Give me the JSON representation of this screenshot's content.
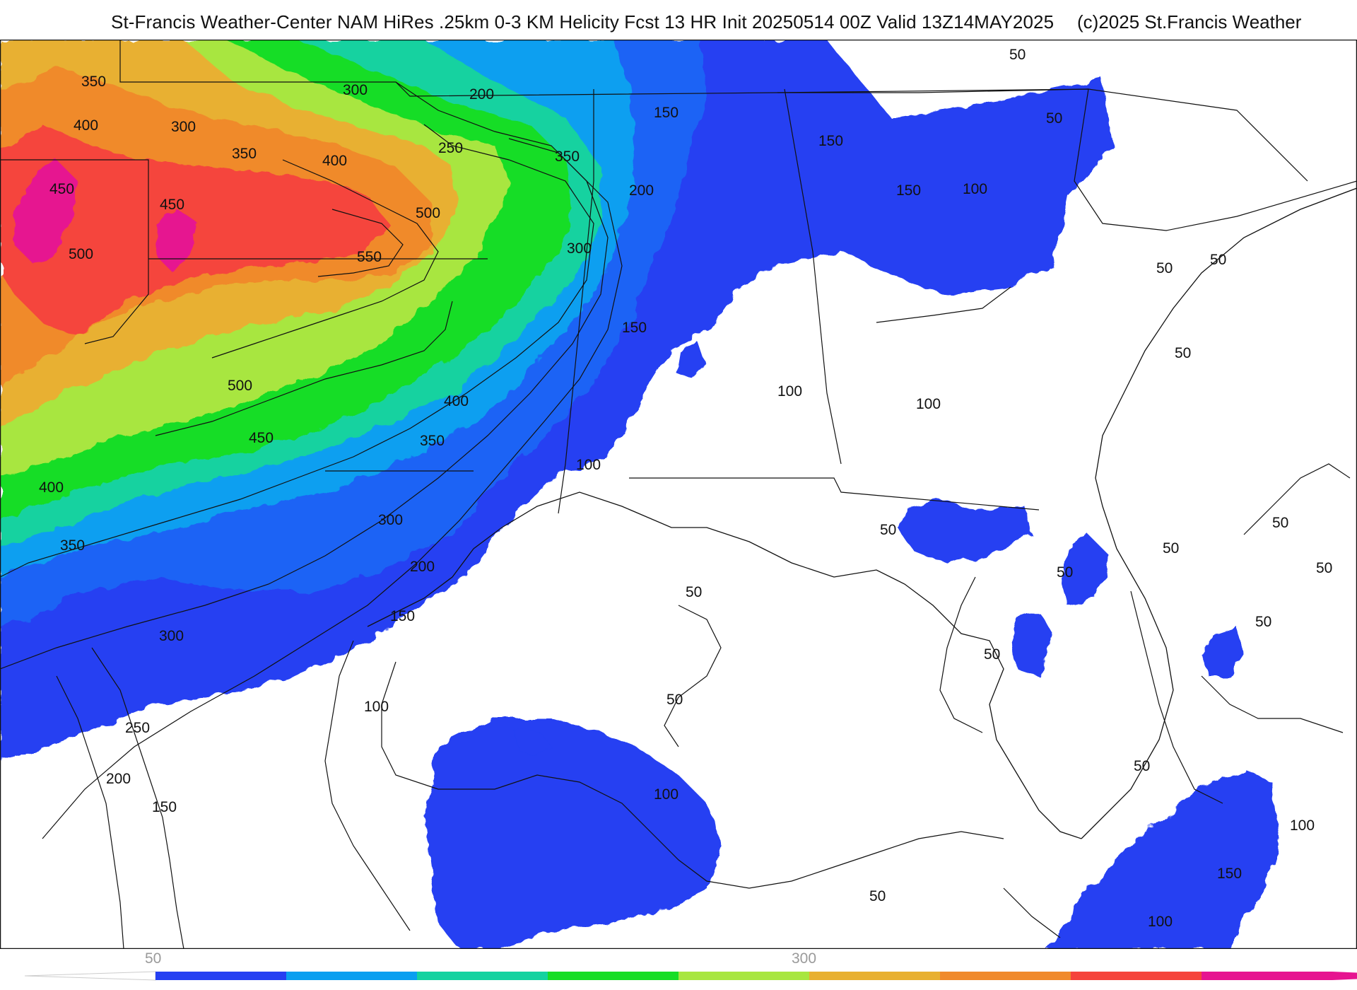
{
  "header": {
    "title": "St-Francis Weather-Center NAM HiRes .25km 0-3 KM Helicity Fcst 13 HR Init 20250514 00Z  Valid 13Z14MAY2025",
    "credit": "(c)2025 St.Francis Weather"
  },
  "map": {
    "product": "0-3 KM Helicity",
    "contour_labels": [
      "50",
      "100",
      "150",
      "200",
      "250",
      "300",
      "350",
      "400",
      "450",
      "500",
      "550"
    ],
    "colors": {
      "band_50": "#2540f2",
      "band_100": "#1e64f5",
      "band_150": "#0a9ff0",
      "band_200": "#14d2a0",
      "band_250": "#18dd26",
      "band_300": "#a8e640",
      "band_350": "#e8b030",
      "band_400": "#f08a2c",
      "band_450": "#f5443c",
      "band_500": "#e61490",
      "land_background": "#ffffff",
      "contour_line": "#111111",
      "border_line": "#a0a0a0"
    }
  },
  "colorbar": {
    "tick_labels": [
      "50",
      "300"
    ],
    "colors": [
      "#2540f2",
      "#0a9ff0",
      "#14d2a0",
      "#18dd26",
      "#a8e640",
      "#e8b030",
      "#f08a2c",
      "#f5443c",
      "#e61490"
    ]
  }
}
